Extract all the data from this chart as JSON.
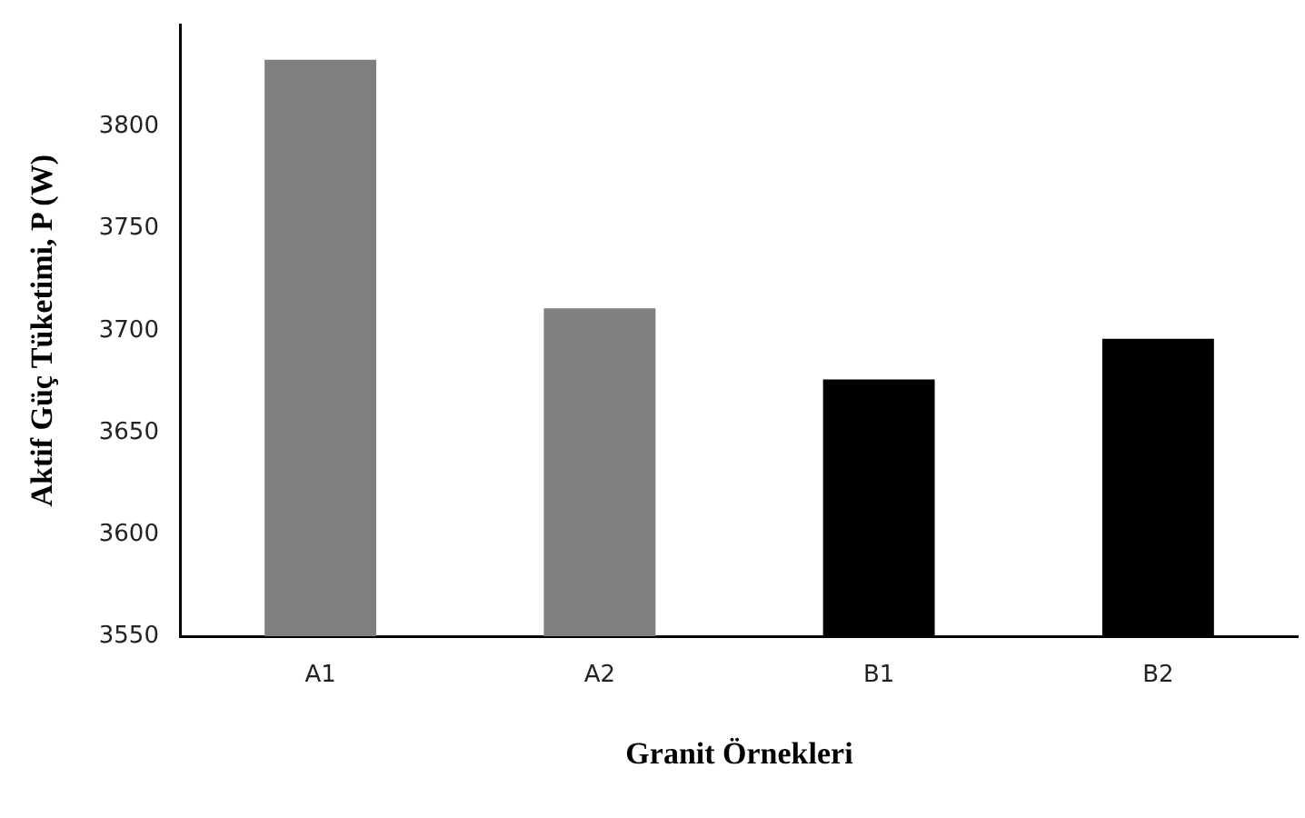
{
  "chart_data": {
    "type": "bar",
    "xlabel": "Granit Örnekleri",
    "ylabel": "Aktif Güç Tüketimi, P (W)",
    "categories": [
      "A1",
      "A2",
      "B1",
      "B2"
    ],
    "values": [
      3833,
      3711,
      3676,
      3696
    ],
    "colors": [
      "#7f7f7f",
      "#7f7f7f",
      "#000000",
      "#000000"
    ],
    "ylim": [
      3550,
      3850
    ],
    "yticks": [
      3550,
      3600,
      3650,
      3700,
      3750,
      3800
    ],
    "grid": false,
    "legend": false
  }
}
